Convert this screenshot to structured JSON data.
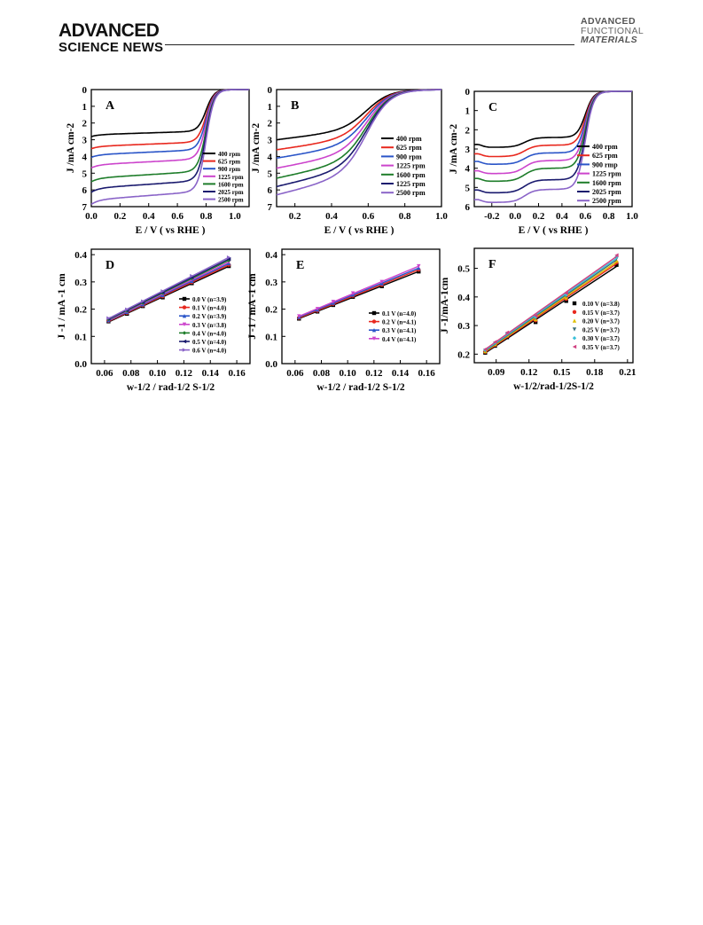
{
  "header": {
    "left_line1": "ADVANCED",
    "left_line2": "SCIENCE NEWS",
    "right_line1": "ADVANCED",
    "right_line2": "FUNCTIONAL",
    "right_line3": "MATERIALS"
  },
  "colors": {
    "black": "#000000",
    "red": "#e8281e",
    "blue": "#2a55c8",
    "magenta": "#cc44cc",
    "green": "#1e7d2a",
    "navy": "#1a1a6e",
    "violet": "#8a64c8",
    "yellow": "#e0c000",
    "cyan": "#3ac0d8",
    "teal": "#3c6e78",
    "pink": "#d04080"
  },
  "chart_data": [
    {
      "id": "A",
      "type": "line",
      "panel_label": "A",
      "xlabel": "E / V ( vs RHE )",
      "ylabel": "J /mA cm-2",
      "xlim": [
        0.0,
        1.1
      ],
      "ylim": [
        0,
        7
      ],
      "y_inverted": true,
      "xticks": [
        0.0,
        0.2,
        0.4,
        0.6,
        0.8,
        1.0
      ],
      "yticks": [
        0,
        1,
        2,
        3,
        4,
        5,
        6,
        7
      ],
      "legend": "bottom-right",
      "series": [
        {
          "name": "400 rpm",
          "color_key": "black",
          "plateau": 2.7
        },
        {
          "name": "625 rpm",
          "color_key": "red",
          "plateau": 3.4
        },
        {
          "name": "900 rpm",
          "color_key": "blue",
          "plateau": 3.9
        },
        {
          "name": "1225 rpm",
          "color_key": "magenta",
          "plateau": 4.5
        },
        {
          "name": "1600 rpm",
          "color_key": "green",
          "plateau": 5.3
        },
        {
          "name": "2025 rpm",
          "color_key": "navy",
          "plateau": 5.9
        },
        {
          "name": "2500 rpm",
          "color_key": "violet",
          "plateau": 6.6
        }
      ]
    },
    {
      "id": "B",
      "type": "line",
      "panel_label": "B",
      "xlabel": "E / V ( vs RHE )",
      "ylabel": "J /mA cm-2",
      "xlim": [
        0.1,
        1.0
      ],
      "ylim": [
        0,
        7
      ],
      "y_inverted": true,
      "xticks": [
        0.2,
        0.4,
        0.6,
        0.8,
        1.0
      ],
      "yticks": [
        0,
        1,
        2,
        3,
        4,
        5,
        6,
        7
      ],
      "legend": "right",
      "series": [
        {
          "name": "400 rpm",
          "color_key": "black",
          "start": 3.0
        },
        {
          "name": "625 rpm",
          "color_key": "red",
          "start": 3.6
        },
        {
          "name": "900 rpm",
          "color_key": "blue",
          "start": 4.1
        },
        {
          "name": "1225 rpm",
          "color_key": "magenta",
          "start": 4.7
        },
        {
          "name": "1600 rpm",
          "color_key": "green",
          "start": 5.3
        },
        {
          "name": "1225 rpm",
          "color_key": "navy",
          "start": 5.8
        },
        {
          "name": "2500 rpm",
          "color_key": "violet",
          "start": 6.3
        }
      ]
    },
    {
      "id": "C",
      "type": "line",
      "panel_label": "C",
      "xlabel": "E / V ( vs RHE )",
      "ylabel": "J /mA cm-2",
      "xlim": [
        -0.35,
        1.0
      ],
      "ylim": [
        0,
        6
      ],
      "y_inverted": true,
      "xticks": [
        -0.2,
        0.0,
        0.2,
        0.4,
        0.6,
        0.8,
        1.0
      ],
      "yticks": [
        0,
        1,
        2,
        3,
        4,
        5,
        6
      ],
      "legend": "right",
      "series": [
        {
          "name": "400 rpm",
          "color_key": "black",
          "plateau": 2.4,
          "low": 3.0
        },
        {
          "name": "625 rpm",
          "color_key": "red",
          "plateau": 2.8,
          "low": 3.5
        },
        {
          "name": "900 rmp",
          "color_key": "blue",
          "plateau": 3.2,
          "low": 3.9
        },
        {
          "name": "1225 rpm",
          "color_key": "magenta",
          "plateau": 3.6,
          "low": 4.4
        },
        {
          "name": "1600 rpm",
          "color_key": "green",
          "plateau": 4.0,
          "low": 4.8
        },
        {
          "name": "2025 rpm",
          "color_key": "navy",
          "plateau": 4.6,
          "low": 5.4
        },
        {
          "name": "2500 rpm",
          "color_key": "violet",
          "plateau": 5.1,
          "low": 5.9
        }
      ]
    },
    {
      "id": "D",
      "type": "scatter",
      "panel_label": "D",
      "xlabel": "w-1/2 / rad-1/2 S-1/2",
      "ylabel": "J -1 / mA -1 cm",
      "xlim": [
        0.05,
        0.17
      ],
      "ylim": [
        0.0,
        0.42
      ],
      "xticks": [
        0.06,
        0.08,
        0.1,
        0.12,
        0.14,
        0.16
      ],
      "yticks": [
        0.0,
        0.1,
        0.2,
        0.3,
        0.4
      ],
      "x": [
        0.063,
        0.077,
        0.089,
        0.104,
        0.126,
        0.154
      ],
      "legend": "bottom-right",
      "series": [
        {
          "name": "0.0 V (n=3.9)",
          "color_key": "black",
          "marker": "square",
          "y": [
            0.155,
            0.183,
            0.211,
            0.243,
            0.295,
            0.358
          ]
        },
        {
          "name": "0.1 V (n=4.0)",
          "color_key": "red",
          "marker": "circle",
          "y": [
            0.157,
            0.186,
            0.214,
            0.247,
            0.299,
            0.363
          ]
        },
        {
          "name": "0.2 V (n=3.9)",
          "color_key": "blue",
          "marker": "triangle-up",
          "y": [
            0.159,
            0.189,
            0.217,
            0.251,
            0.303,
            0.368
          ]
        },
        {
          "name": "0.3 V (n=3.8)",
          "color_key": "magenta",
          "marker": "triangle-down",
          "y": [
            0.161,
            0.191,
            0.22,
            0.255,
            0.308,
            0.373
          ]
        },
        {
          "name": "0.4 V (n=4.0)",
          "color_key": "green",
          "marker": "diamond",
          "y": [
            0.163,
            0.194,
            0.223,
            0.259,
            0.313,
            0.379
          ]
        },
        {
          "name": "0.5 V (n=4.0)",
          "color_key": "navy",
          "marker": "triangle-left",
          "y": [
            0.165,
            0.196,
            0.226,
            0.262,
            0.317,
            0.384
          ]
        },
        {
          "name": "0.6 V (n=4.0)",
          "color_key": "violet",
          "marker": "triangle-right",
          "y": [
            0.167,
            0.199,
            0.229,
            0.266,
            0.322,
            0.39
          ]
        }
      ]
    },
    {
      "id": "E",
      "type": "scatter",
      "panel_label": "E",
      "xlabel": "w-1/2 / rad-1/2 S-1/2",
      "ylabel": "J -1 / mA -1 cm",
      "xlim": [
        0.05,
        0.17
      ],
      "ylim": [
        0.0,
        0.42
      ],
      "xticks": [
        0.06,
        0.08,
        0.1,
        0.12,
        0.14,
        0.16
      ],
      "yticks": [
        0.0,
        0.1,
        0.2,
        0.3,
        0.4
      ],
      "x": [
        0.063,
        0.077,
        0.089,
        0.104,
        0.126,
        0.154
      ],
      "legend": "bottom-right",
      "series": [
        {
          "name": "0.1 V (n=4.0)",
          "color_key": "black",
          "marker": "square",
          "y": [
            0.165,
            0.191,
            0.215,
            0.245,
            0.284,
            0.338
          ]
        },
        {
          "name": "0.2 V (n=4.1)",
          "color_key": "red",
          "marker": "circle",
          "y": [
            0.168,
            0.194,
            0.219,
            0.249,
            0.289,
            0.345
          ]
        },
        {
          "name": "0.3 V (n=4.1)",
          "color_key": "blue",
          "marker": "triangle-up",
          "y": [
            0.171,
            0.198,
            0.223,
            0.253,
            0.294,
            0.351
          ]
        },
        {
          "name": "0.4 V (n=4.1)",
          "color_key": "magenta",
          "marker": "triangle-down",
          "y": [
            0.174,
            0.201,
            0.227,
            0.258,
            0.3,
            0.358
          ]
        }
      ]
    },
    {
      "id": "F",
      "type": "scatter",
      "panel_label": "F",
      "xlabel": "w-1/2/rad-1/2S-1/2",
      "ylabel": "J -1/mA-1cm",
      "xlim": [
        0.07,
        0.215
      ],
      "ylim": [
        0.17,
        0.57
      ],
      "xticks": [
        0.09,
        0.12,
        0.15,
        0.18,
        0.21
      ],
      "yticks": [
        0.2,
        0.3,
        0.4,
        0.5
      ],
      "x": [
        0.08,
        0.089,
        0.1,
        0.126,
        0.154,
        0.2
      ],
      "legend": "bottom-right",
      "series": [
        {
          "name": "0.10 V (n=3.8)",
          "color_key": "black",
          "marker": "square",
          "y": [
            0.205,
            0.229,
            0.259,
            0.312,
            0.386,
            0.512
          ]
        },
        {
          "name": "0.15 V (n=3.7)",
          "color_key": "red",
          "marker": "circle",
          "y": [
            0.208,
            0.232,
            0.263,
            0.318,
            0.393,
            0.521
          ]
        },
        {
          "name": "0.20 V (n=3.7)",
          "color_key": "yellow",
          "marker": "triangle-up",
          "y": [
            0.21,
            0.235,
            0.266,
            0.322,
            0.398,
            0.527
          ]
        },
        {
          "name": "0.25 V (n=3.7)",
          "color_key": "teal",
          "marker": "triangle-down",
          "y": [
            0.212,
            0.237,
            0.269,
            0.326,
            0.403,
            0.534
          ]
        },
        {
          "name": "0.30 V (n=3.7)",
          "color_key": "cyan",
          "marker": "diamond",
          "y": [
            0.215,
            0.24,
            0.272,
            0.33,
            0.408,
            0.54
          ]
        },
        {
          "name": "0.35 V (n=3.7)",
          "color_key": "pink",
          "marker": "triangle-left",
          "y": [
            0.217,
            0.243,
            0.276,
            0.334,
            0.413,
            0.546
          ]
        }
      ]
    }
  ]
}
